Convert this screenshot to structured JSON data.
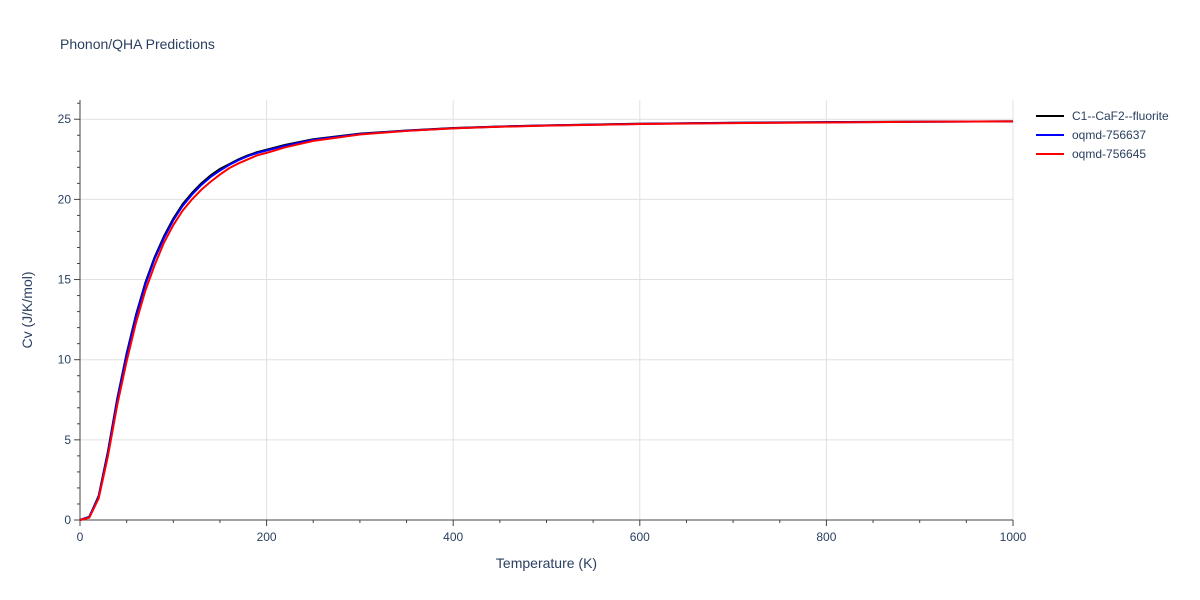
{
  "chart_data": {
    "type": "line",
    "title": "Phonon/QHA Predictions",
    "xlabel": "Temperature (K)",
    "ylabel": "Cv (J/K/mol)",
    "xlim": [
      0,
      1000
    ],
    "ylim": [
      0,
      26.2
    ],
    "xticks": [
      0,
      200,
      400,
      600,
      800,
      1000
    ],
    "yticks": [
      0,
      5,
      10,
      15,
      20,
      25
    ],
    "grid": true,
    "legend_position": "right",
    "series": [
      {
        "name": "C1--CaF2--fluorite",
        "color": "#000000",
        "x": [
          0,
          10,
          20,
          30,
          40,
          50,
          60,
          70,
          80,
          90,
          100,
          110,
          120,
          130,
          140,
          150,
          160,
          170,
          180,
          190,
          200,
          220,
          250,
          300,
          350,
          400,
          450,
          500,
          600,
          700,
          800,
          900,
          1000
        ],
        "y": [
          0,
          0.2,
          1.5,
          4.3,
          7.6,
          10.4,
          12.8,
          14.8,
          16.4,
          17.7,
          18.8,
          19.7,
          20.4,
          21.0,
          21.5,
          21.9,
          22.2,
          22.5,
          22.75,
          22.95,
          23.1,
          23.4,
          23.75,
          24.1,
          24.3,
          24.45,
          24.55,
          24.62,
          24.72,
          24.78,
          24.82,
          24.85,
          24.87
        ]
      },
      {
        "name": "oqmd-756637",
        "color": "#0000ff",
        "x": [
          0,
          10,
          20,
          30,
          40,
          50,
          60,
          70,
          80,
          90,
          100,
          110,
          120,
          130,
          140,
          150,
          160,
          170,
          180,
          190,
          200,
          220,
          250,
          300,
          350,
          400,
          450,
          500,
          600,
          700,
          800,
          900,
          1000
        ],
        "y": [
          0,
          0.2,
          1.45,
          4.2,
          7.5,
          10.3,
          12.7,
          14.7,
          16.3,
          17.6,
          18.7,
          19.6,
          20.3,
          20.9,
          21.4,
          21.8,
          22.15,
          22.45,
          22.7,
          22.9,
          23.05,
          23.35,
          23.72,
          24.08,
          24.28,
          24.44,
          24.54,
          24.61,
          24.71,
          24.77,
          24.81,
          24.84,
          24.87
        ]
      },
      {
        "name": "oqmd-756645",
        "color": "#ff0000",
        "x": [
          0,
          10,
          20,
          30,
          40,
          50,
          60,
          70,
          80,
          90,
          100,
          110,
          120,
          130,
          140,
          150,
          160,
          170,
          180,
          190,
          200,
          220,
          250,
          300,
          350,
          400,
          450,
          500,
          600,
          700,
          800,
          900,
          1000
        ],
        "y": [
          0,
          0.15,
          1.35,
          4.0,
          7.2,
          9.9,
          12.3,
          14.3,
          15.9,
          17.3,
          18.4,
          19.3,
          20.0,
          20.6,
          21.1,
          21.55,
          21.95,
          22.25,
          22.5,
          22.75,
          22.9,
          23.25,
          23.65,
          24.05,
          24.27,
          24.43,
          24.53,
          24.6,
          24.7,
          24.76,
          24.8,
          24.84,
          24.87
        ]
      }
    ]
  }
}
